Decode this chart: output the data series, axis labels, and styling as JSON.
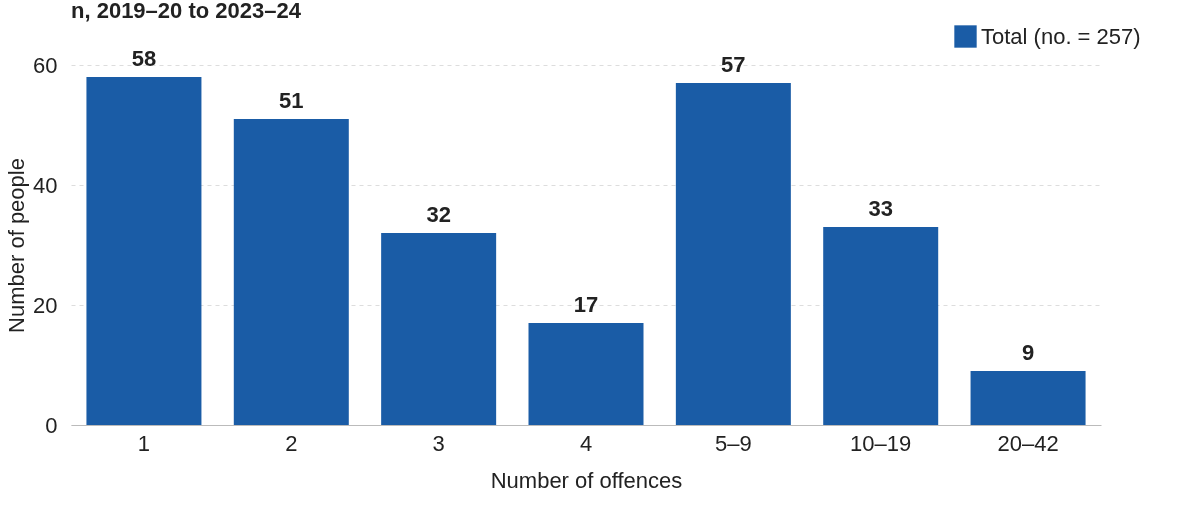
{
  "chart_data": {
    "type": "bar",
    "title": "n, 2019–20 to 2023–24",
    "xlabel": "Number of offences",
    "ylabel": "Number of people",
    "categories": [
      "1",
      "2",
      "3",
      "4",
      "5–9",
      "10–19",
      "20–42"
    ],
    "series": [
      {
        "name": "Total (no. = 257)",
        "color": "#1a5ca6",
        "values": [
          58,
          51,
          32,
          17,
          57,
          33,
          9
        ]
      }
    ],
    "ylim": [
      0,
      60
    ],
    "yticks": [
      0,
      20,
      40,
      60
    ],
    "grid": "y",
    "legend": "top right",
    "data_labels": true
  }
}
